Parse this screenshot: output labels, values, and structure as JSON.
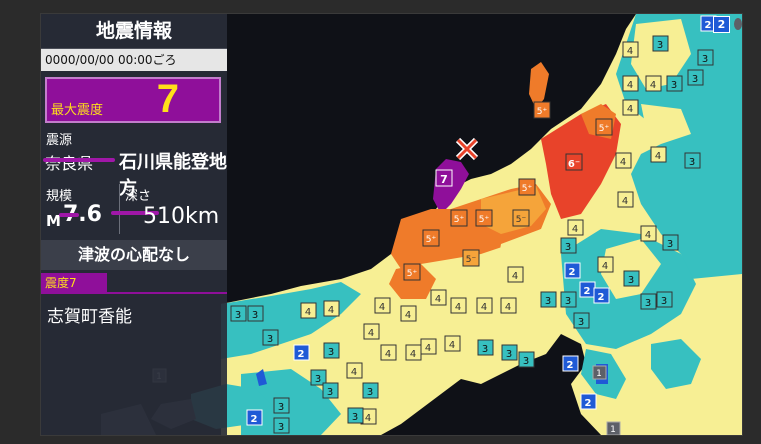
{
  "panel": {
    "title": "地震情報",
    "datetime": "0000/00/00 00:00ごろ",
    "max_intensity_label": "最大震度",
    "max_intensity_value": "7",
    "epicenter_label": "震源",
    "epicenter_struck": "奈良県",
    "epicenter_value": "石川県能登地方",
    "magnitude_label": "規模",
    "magnitude_prefix": "M",
    "magnitude_value": "7.6",
    "depth_label": "深さ",
    "depth_value": "10km",
    "depth_struck_digit": "5",
    "tsunami": "津波の心配なし",
    "intensity_header": "震度7",
    "intensity_place": "志賀町香能"
  },
  "colors": {
    "intensity_7": "#8f0f9a",
    "intensity_6minus": "#e8432a",
    "intensity_5plus": "#ef7b2a",
    "intensity_5minus": "#f5a43a",
    "intensity_4": "#f7ef94",
    "intensity_3": "#37c0c0",
    "intensity_2": "#1f5ad6",
    "intensity_1": "#5d6068",
    "land_default": "#50cfc3",
    "sea": "#0f1117"
  },
  "map_badges": [
    {
      "label": "2",
      "level": "2"
    },
    {
      "label": "3",
      "level": "3"
    },
    {
      "label": "4",
      "level": "4"
    },
    {
      "label": "5+",
      "level": "5+"
    },
    {
      "label": "5-",
      "level": "5-"
    },
    {
      "label": "6-",
      "level": "6-"
    },
    {
      "label": "7",
      "level": "7"
    },
    {
      "label": "1",
      "level": "1"
    }
  ],
  "epicenter_mark_icon": "x-mark-icon"
}
